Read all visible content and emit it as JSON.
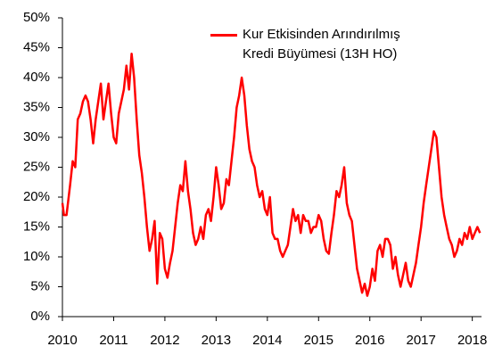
{
  "chart_data": {
    "type": "line",
    "x": [
      2010.0,
      2010.03,
      2010.08,
      2010.15,
      2010.2,
      2010.25,
      2010.3,
      2010.35,
      2010.4,
      2010.45,
      2010.5,
      2010.55,
      2010.6,
      2010.65,
      2010.7,
      2010.75,
      2010.8,
      2010.85,
      2010.9,
      2010.95,
      2011.0,
      2011.05,
      2011.1,
      2011.2,
      2011.25,
      2011.3,
      2011.35,
      2011.4,
      2011.45,
      2011.5,
      2011.55,
      2011.6,
      2011.65,
      2011.7,
      2011.75,
      2011.8,
      2011.85,
      2011.9,
      2011.95,
      2012.0,
      2012.05,
      2012.1,
      2012.15,
      2012.2,
      2012.25,
      2012.3,
      2012.35,
      2012.4,
      2012.45,
      2012.5,
      2012.55,
      2012.6,
      2012.65,
      2012.7,
      2012.75,
      2012.8,
      2012.85,
      2012.9,
      2012.95,
      2013.0,
      2013.05,
      2013.1,
      2013.15,
      2013.2,
      2013.25,
      2013.3,
      2013.35,
      2013.4,
      2013.45,
      2013.5,
      2013.55,
      2013.6,
      2013.65,
      2013.7,
      2013.75,
      2013.8,
      2013.85,
      2013.9,
      2013.95,
      2014.0,
      2014.05,
      2014.1,
      2014.15,
      2014.2,
      2014.25,
      2014.3,
      2014.35,
      2014.4,
      2014.45,
      2014.5,
      2014.55,
      2014.6,
      2014.65,
      2014.7,
      2014.75,
      2014.8,
      2014.85,
      2014.9,
      2014.95,
      2015.0,
      2015.05,
      2015.1,
      2015.15,
      2015.2,
      2015.25,
      2015.3,
      2015.35,
      2015.4,
      2015.45,
      2015.5,
      2015.55,
      2015.6,
      2015.65,
      2015.7,
      2015.75,
      2015.8,
      2015.85,
      2015.9,
      2015.95,
      2016.0,
      2016.05,
      2016.1,
      2016.15,
      2016.2,
      2016.25,
      2016.3,
      2016.35,
      2016.4,
      2016.45,
      2016.5,
      2016.55,
      2016.6,
      2016.65,
      2016.7,
      2016.75,
      2016.8,
      2016.85,
      2016.9,
      2016.95,
      2017.0,
      2017.05,
      2017.1,
      2017.15,
      2017.2,
      2017.25,
      2017.3,
      2017.35,
      2017.4,
      2017.45,
      2017.5,
      2017.55,
      2017.6,
      2017.65,
      2017.7,
      2017.75,
      2017.8,
      2017.85,
      2017.9,
      2017.95,
      2018.0,
      2018.05,
      2018.1,
      2018.15
    ],
    "series": [
      {
        "name": "Kur Etkisinden Arındırılmış Kredi Büyümesi (13H HO)",
        "color": "#ff0000",
        "values": [
          19,
          17,
          17,
          22,
          26,
          25,
          33,
          34,
          36,
          37,
          36,
          33,
          29,
          33,
          36,
          39,
          33,
          36,
          39,
          34,
          30,
          29,
          34,
          38,
          42,
          38,
          44,
          40,
          33,
          27,
          24,
          20,
          15,
          11,
          13,
          16,
          5.5,
          14,
          13,
          8,
          6.5,
          9,
          11,
          15,
          19,
          22,
          21,
          26,
          21,
          18,
          14,
          12,
          13,
          15,
          13,
          17,
          18,
          16,
          20,
          25,
          22,
          18,
          19,
          23,
          22,
          26,
          30,
          35,
          37,
          40,
          37,
          32,
          28,
          26,
          25,
          22,
          20,
          21,
          18,
          17,
          20,
          14,
          13,
          13,
          11,
          10,
          11,
          12,
          15,
          18,
          16,
          17,
          14,
          17,
          16,
          16,
          14,
          15,
          15,
          17,
          16,
          13,
          11,
          10.5,
          14,
          17,
          21,
          20,
          22,
          25,
          19,
          17,
          16,
          12,
          8,
          6,
          4,
          5.5,
          3.5,
          5,
          8,
          6,
          11,
          12,
          10,
          13,
          13,
          12,
          8,
          10,
          7,
          5,
          7,
          9,
          6,
          5,
          7,
          9,
          12,
          15,
          19,
          22,
          25,
          28,
          31,
          30,
          25,
          20,
          17,
          15,
          13,
          12,
          10,
          11,
          13,
          12,
          14,
          13,
          15,
          13,
          14,
          15,
          14
        ]
      }
    ],
    "xlim": [
      2010,
      2018.18
    ],
    "xticks": [
      2010,
      2011,
      2012,
      2013,
      2014,
      2015,
      2016,
      2017,
      2018
    ],
    "ylim": [
      0,
      50
    ],
    "yticks": [
      {
        "value": 0,
        "label": "0%"
      },
      {
        "value": 5,
        "label": "5%"
      },
      {
        "value": 10,
        "label": "10%"
      },
      {
        "value": 15,
        "label": "15%"
      },
      {
        "value": 20,
        "label": "20%"
      },
      {
        "value": 25,
        "label": "25%"
      },
      {
        "value": 30,
        "label": "30%"
      },
      {
        "value": 35,
        "label": "35%"
      },
      {
        "value": 40,
        "label": "40%"
      },
      {
        "value": 45,
        "label": "45%"
      },
      {
        "value": 50,
        "label": "50%"
      }
    ]
  }
}
